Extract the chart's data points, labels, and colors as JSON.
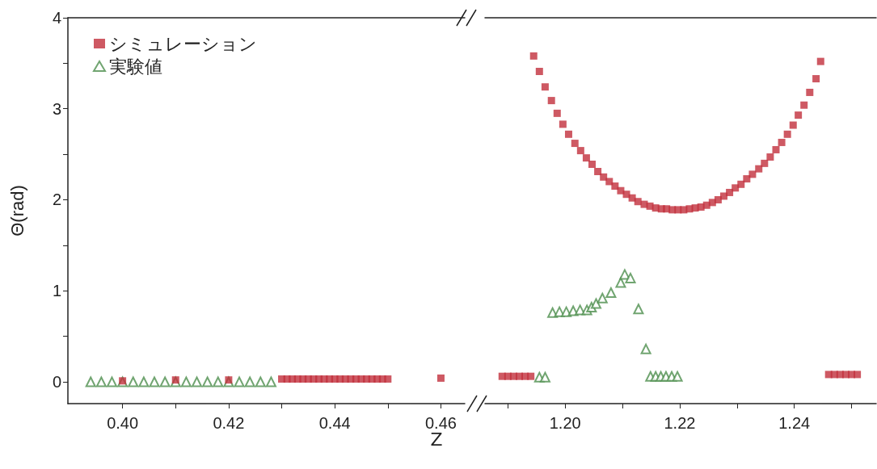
{
  "chart_data": [
    {
      "type": "scatter",
      "xlabel": "Z",
      "ylabel": "Θ(rad)",
      "legend": "top left",
      "grid": false,
      "xlim": [
        0.3897,
        0.4645
      ],
      "xticks": [
        {
          "value": 0.4,
          "label": "0.40"
        },
        {
          "value": 0.41,
          "label": null
        },
        {
          "value": 0.42,
          "label": "0.42"
        },
        {
          "value": 0.43,
          "label": null
        },
        {
          "value": 0.44,
          "label": "0.44"
        },
        {
          "value": 0.45,
          "label": null
        },
        {
          "value": 0.46,
          "label": "0.46"
        }
      ],
      "ylim": [
        -0.24,
        4
      ],
      "yticks": [
        0,
        {
          "value": 0.5,
          "label": null
        },
        1,
        {
          "value": 1.5,
          "label": null
        },
        2,
        {
          "value": 2.5,
          "label": null
        },
        3,
        {
          "value": 3.5,
          "label": null
        },
        4
      ],
      "series": [
        {
          "name": "シミュレーション",
          "color": "#c22f3c",
          "marker": "square",
          "x": [
            0.4,
            0.41,
            0.42,
            0.43,
            0.431,
            0.432,
            0.433,
            0.434,
            0.435,
            0.436,
            0.437,
            0.438,
            0.439,
            0.44,
            0.441,
            0.442,
            0.443,
            0.444,
            0.445,
            0.446,
            0.447,
            0.448,
            0.449,
            0.45,
            0.46
          ],
          "values": [
            0.01,
            0.02,
            0.02,
            0.03,
            0.03,
            0.03,
            0.03,
            0.03,
            0.03,
            0.03,
            0.03,
            0.03,
            0.03,
            0.03,
            0.03,
            0.03,
            0.03,
            0.03,
            0.03,
            0.03,
            0.03,
            0.03,
            0.03,
            0.03,
            0.04
          ]
        },
        {
          "name": "実験値",
          "color": "#4e8f4e",
          "marker": "triangle",
          "x": [
            0.394,
            0.396,
            0.398,
            0.4,
            0.402,
            0.404,
            0.406,
            0.408,
            0.41,
            0.412,
            0.414,
            0.416,
            0.418,
            0.42,
            0.422,
            0.424,
            0.426,
            0.428
          ],
          "values": [
            0,
            0,
            0,
            0,
            0,
            0,
            0,
            0,
            0,
            0,
            0,
            0,
            0,
            0,
            0,
            0,
            0,
            0
          ]
        }
      ]
    },
    {
      "type": "scatter",
      "grid": false,
      "legend": false,
      "tick_labels": "x",
      "xlim": [
        1.186,
        1.2543
      ],
      "xticks": [
        {
          "value": 1.19,
          "label": null
        },
        {
          "value": 1.2,
          "label": "1.20"
        },
        {
          "value": 1.21,
          "label": null
        },
        {
          "value": 1.22,
          "label": "1.22"
        },
        {
          "value": 1.23,
          "label": null
        },
        {
          "value": 1.24,
          "label": "1.24"
        },
        {
          "value": 1.25,
          "label": null
        }
      ],
      "ylim": [
        -0.24,
        4
      ],
      "yticks": [
        0,
        1,
        2,
        3,
        4
      ],
      "series": [
        {
          "color": "#c22f3c",
          "marker": "square",
          "x": [
            1.189,
            1.19,
            1.191,
            1.192,
            1.193,
            1.194,
            1.1945,
            1.1955,
            1.1965,
            1.1976,
            1.1986,
            1.1996,
            1.2006,
            1.2017,
            1.2027,
            1.2037,
            1.2047,
            1.2057,
            1.2067,
            1.2077,
            1.2087,
            1.2097,
            1.2107,
            1.2117,
            1.2127,
            1.2138,
            1.2148,
            1.2158,
            1.2168,
            1.2177,
            1.2187,
            1.2197,
            1.2207,
            1.2217,
            1.2227,
            1.2237,
            1.2247,
            1.2257,
            1.2267,
            1.2277,
            1.2287,
            1.2297,
            1.2307,
            1.2317,
            1.2327,
            1.2338,
            1.2348,
            1.2358,
            1.2368,
            1.2378,
            1.2388,
            1.2398,
            1.2407,
            1.2417,
            1.2427,
            1.2438,
            1.2446,
            1.246,
            1.247,
            1.248,
            1.249,
            1.25,
            1.251
          ],
          "values": [
            0.06,
            0.06,
            0.06,
            0.06,
            0.06,
            0.06,
            3.58,
            3.41,
            3.24,
            3.09,
            2.95,
            2.83,
            2.72,
            2.62,
            2.54,
            2.46,
            2.39,
            2.31,
            2.25,
            2.2,
            2.15,
            2.1,
            2.06,
            2.02,
            1.98,
            1.95,
            1.93,
            1.91,
            1.9,
            1.9,
            1.89,
            1.89,
            1.89,
            1.9,
            1.91,
            1.92,
            1.94,
            1.97,
            2.0,
            2.04,
            2.08,
            2.13,
            2.17,
            2.23,
            2.28,
            2.34,
            2.4,
            2.47,
            2.55,
            2.63,
            2.72,
            2.82,
            2.93,
            3.04,
            3.18,
            3.33,
            3.52,
            0.08,
            0.08,
            0.08,
            0.08,
            0.08,
            0.08
          ]
        },
        {
          "color": "#4e8f4e",
          "marker": "triangle",
          "x": [
            1.1955,
            1.1965,
            1.1978,
            1.199,
            1.2002,
            1.2014,
            1.2026,
            1.2038,
            1.2046,
            1.2054,
            1.2065,
            1.208,
            1.2097,
            1.2104,
            1.2114,
            1.2128,
            1.2141,
            1.2149,
            1.2158,
            1.2167,
            1.2176,
            1.2186,
            1.2196
          ],
          "values": [
            0.05,
            0.05,
            0.76,
            0.77,
            0.77,
            0.78,
            0.79,
            0.79,
            0.82,
            0.86,
            0.92,
            0.98,
            1.09,
            1.18,
            1.14,
            0.8,
            0.36,
            0.06,
            0.06,
            0.06,
            0.06,
            0.06,
            0.06
          ]
        }
      ]
    }
  ]
}
